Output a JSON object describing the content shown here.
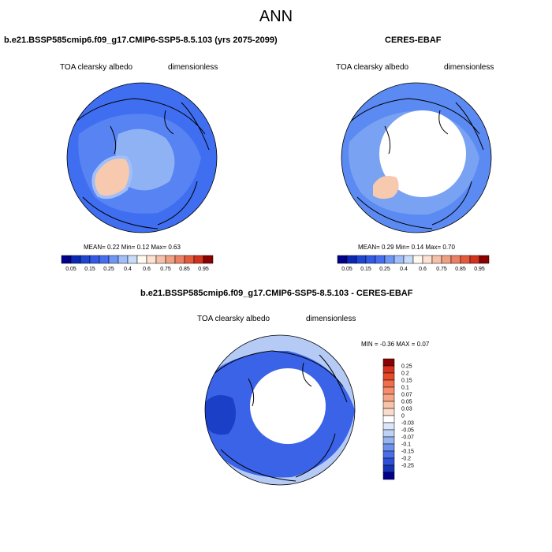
{
  "main_title": "ANN",
  "panels": [
    {
      "title": "b.e21.BSSP585cmip6.f09_g17.CMIP6-SSP5-8.5.103 (yrs 2075-2099)",
      "variable": "TOA clearsky albedo",
      "units": "dimensionless",
      "stats": "MEAN=   0.22  Min=   0.12  Max=   0.63"
    },
    {
      "title": "CERES-EBAF",
      "variable": "TOA clearsky albedo",
      "units": "dimensionless",
      "stats": "MEAN=   0.29  Min=   0.14  Max=   0.70"
    },
    {
      "title": "b.e21.BSSP585cmip6.f09_g17.CMIP6-SSP5-8.5.103 - CERES-EBAF",
      "variable": "TOA clearsky albedo",
      "units": "dimensionless",
      "stats": "MIN =  -0.36 MAX =   0.07"
    }
  ],
  "colorbar_abs": {
    "colors": [
      "#00008b",
      "#0a28b4",
      "#1e46d2",
      "#325ae6",
      "#466ef0",
      "#6e96f5",
      "#a0bef8",
      "#c8dcfa",
      "#fffaf0",
      "#fde1d2",
      "#f5c0aa",
      "#f0a082",
      "#ec8064",
      "#e65a3c",
      "#d2321e",
      "#8b0000"
    ],
    "labels": [
      "0.05",
      "0.15",
      "0.25",
      "0.4",
      "0.6",
      "0.75",
      "0.85",
      "0.95"
    ]
  },
  "colorbar_diff": {
    "colors": [
      "#8b0000",
      "#d2321e",
      "#e64b28",
      "#f06e4b",
      "#f58c6e",
      "#f5a587",
      "#f8c3a8",
      "#fadccd",
      "#ffffff",
      "#dbe6fa",
      "#bed2f5",
      "#96b4f0",
      "#6e91eb",
      "#4b6ee6",
      "#2d50d7",
      "#1432b4",
      "#00008b"
    ],
    "labels": [
      "0.25",
      "0.2",
      "0.15",
      "0.1",
      "0.07",
      "0.05",
      "0.03",
      "0",
      "-0.03",
      "-0.05",
      "-0.07",
      "-0.1",
      "-0.15",
      "-0.2",
      "-0.25"
    ]
  },
  "map_colors": {
    "ocean_model": "#3f6ef0",
    "ocean_obs": "#5a8af2",
    "light_band": "#8fb2f4",
    "ice": "#ffffff",
    "greenland_high": "#f7c9ae",
    "diff_base": "#3a63e8",
    "diff_dark": "#1c3fc8",
    "diff_light": "#b5cbf5"
  }
}
